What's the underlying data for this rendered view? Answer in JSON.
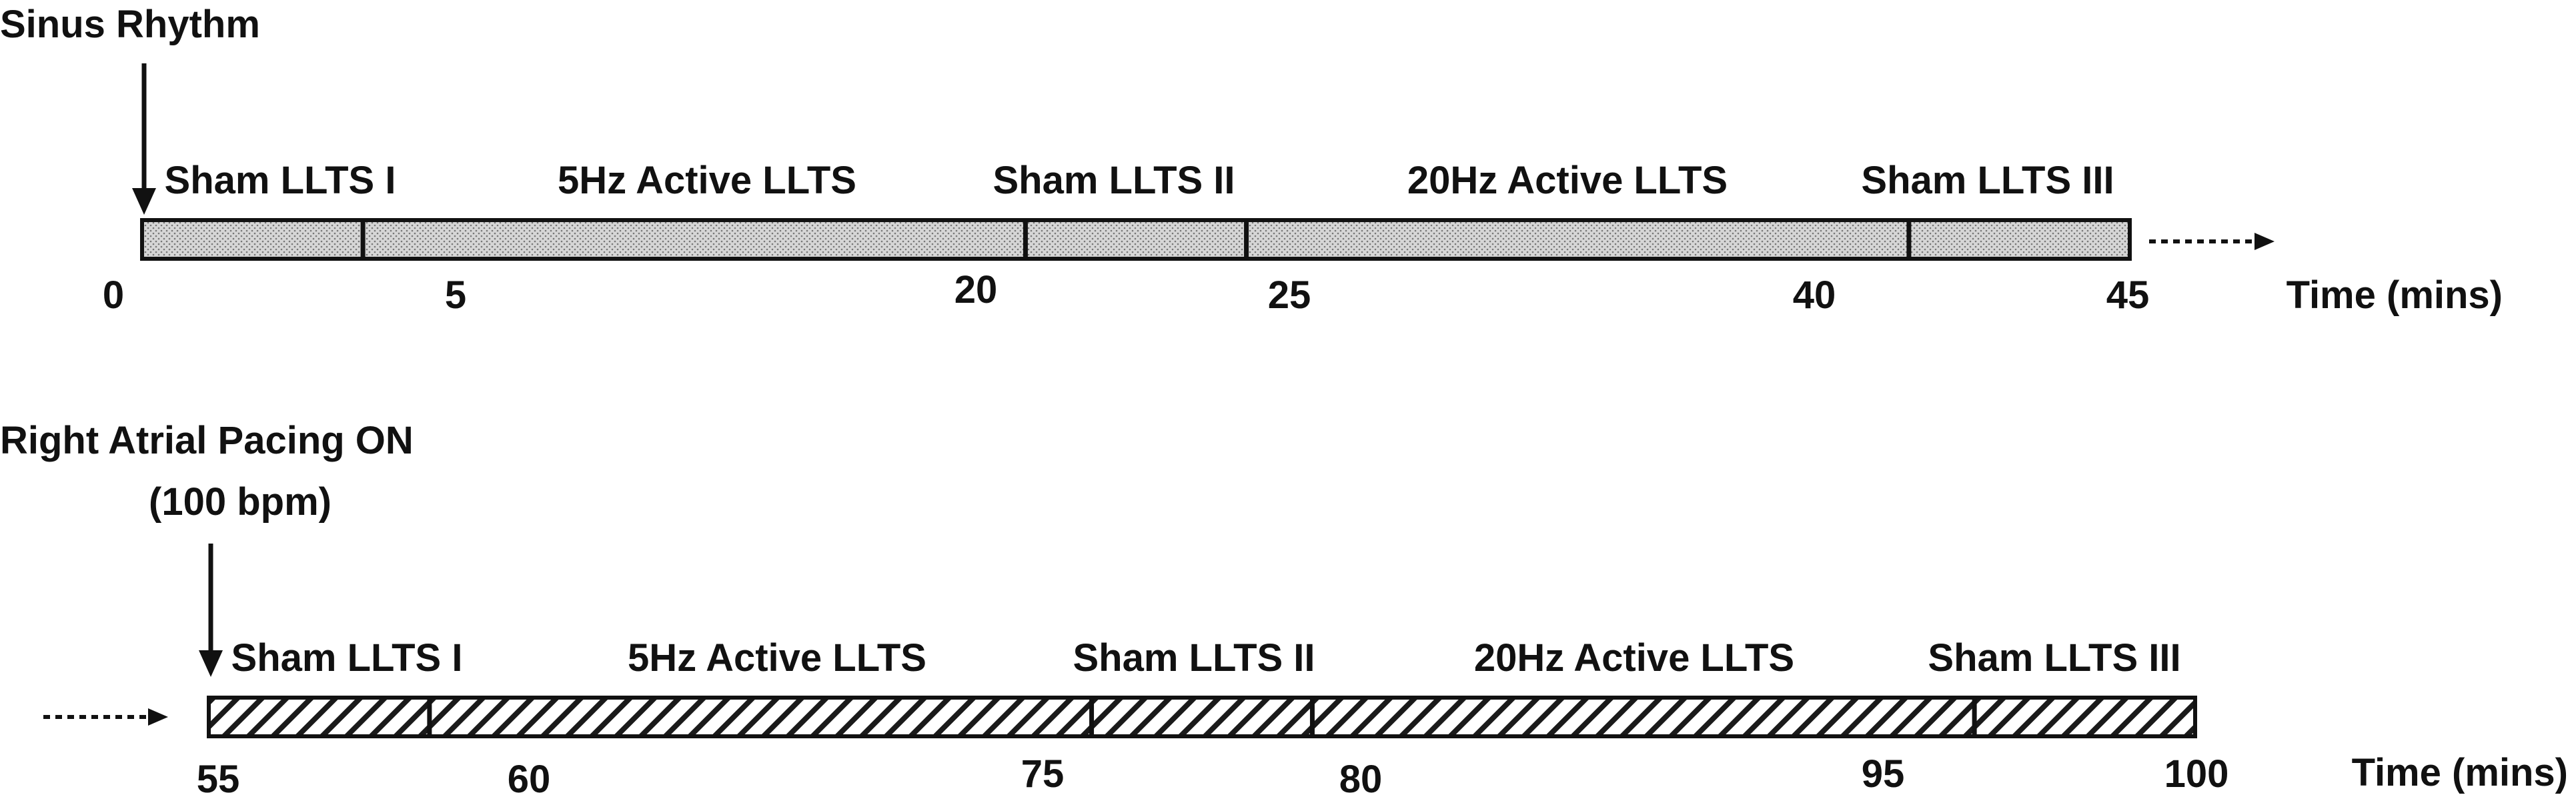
{
  "timeline1": {
    "event": "Sinus Rhythm",
    "pattern": "dotted",
    "start": 0,
    "end": 45,
    "boundaries": [
      5,
      20,
      25,
      40
    ],
    "ticks": [
      "0",
      "5",
      "20",
      "25",
      "40",
      "45"
    ],
    "segments": [
      {
        "label": "Sham LLTS I",
        "start": 0,
        "end": 5
      },
      {
        "label": "5Hz Active LLTS",
        "start": 5,
        "end": 20
      },
      {
        "label": "Sham LLTS II",
        "start": 20,
        "end": 25
      },
      {
        "label": "20Hz Active LLTS",
        "start": 25,
        "end": 40
      },
      {
        "label": "Sham LLTS III",
        "start": 40,
        "end": 45
      }
    ],
    "axis_label": "Time (mins)"
  },
  "timeline2": {
    "event_line1": "Right Atrial Pacing ON",
    "event_line2": "(100 bpm)",
    "pattern": "hatched",
    "start": 55,
    "end": 100,
    "boundaries": [
      60,
      75,
      80,
      95
    ],
    "ticks": [
      "55",
      "60",
      "75",
      "80",
      "95",
      "100"
    ],
    "segments": [
      {
        "label": "Sham LLTS I",
        "start": 55,
        "end": 60
      },
      {
        "label": "5Hz Active LLTS",
        "start": 60,
        "end": 75
      },
      {
        "label": "Sham LLTS II",
        "start": 75,
        "end": 80
      },
      {
        "label": "20Hz Active LLTS",
        "start": 80,
        "end": 95
      },
      {
        "label": "Sham LLTS III",
        "start": 95,
        "end": 100
      }
    ],
    "axis_label": "Time (mins)"
  },
  "colors": {
    "stroke": "#111111",
    "dotted_fill": "#d9d9d9",
    "hatch_bg": "#ffffff"
  }
}
